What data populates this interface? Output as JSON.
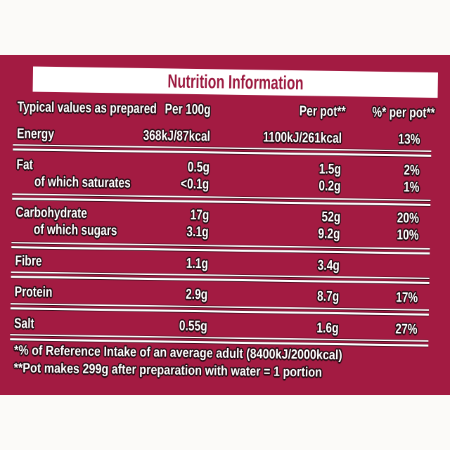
{
  "panel": {
    "bg_color": "#a31b42",
    "title": "Nutrition Information",
    "title_color": "#9c1a40"
  },
  "table": {
    "header": {
      "label": "Typical values as prepared",
      "per_100g": "Per 100g",
      "per_pot": "Per pot**",
      "pct_per_pot": "%* per pot**"
    },
    "rows": [
      {
        "label": "Energy",
        "indent": false,
        "per_100g": "368kJ/87kcal",
        "per_pot": "1100kJ/261kcal",
        "pct": "13%"
      },
      {
        "label": "Fat",
        "indent": false,
        "per_100g": "0.5g",
        "per_pot": "1.5g",
        "pct": "2%"
      },
      {
        "label": "of which saturates",
        "indent": true,
        "per_100g": "<0.1g",
        "per_pot": "0.2g",
        "pct": "1%"
      },
      {
        "label": "Carbohydrate",
        "indent": false,
        "per_100g": "17g",
        "per_pot": "52g",
        "pct": "20%"
      },
      {
        "label": "of which sugars",
        "indent": true,
        "per_100g": "3.1g",
        "per_pot": "9.2g",
        "pct": "10%"
      },
      {
        "label": "Fibre",
        "indent": false,
        "per_100g": "1.1g",
        "per_pot": "3.4g",
        "pct": ""
      },
      {
        "label": "Protein",
        "indent": false,
        "per_100g": "2.9g",
        "per_pot": "8.7g",
        "pct": "17%"
      },
      {
        "label": "Salt",
        "indent": false,
        "per_100g": "0.55g",
        "per_pot": "1.6g",
        "pct": "27%"
      }
    ]
  },
  "footnotes": [
    "*% of Reference Intake of an average adult (8400kJ/2000kcal)",
    "**Pot makes 299g after preparation with water = 1 portion"
  ]
}
